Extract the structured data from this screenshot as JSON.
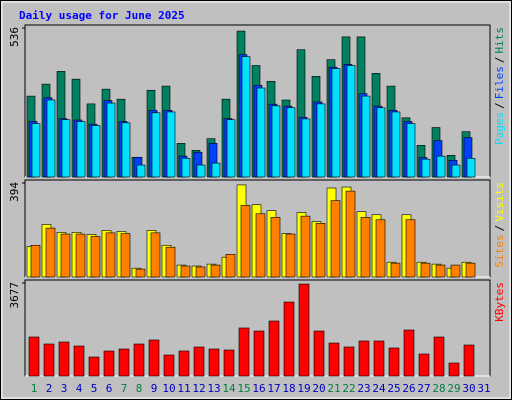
{
  "title": "Daily usage for June 2025",
  "separator": "/",
  "chart_data": [
    {
      "type": "bar",
      "ylim": [
        0,
        536
      ],
      "yticks": [
        536
      ],
      "series": [
        {
          "name": "Hits",
          "color": "#008060",
          "values": [
            291,
            334,
            380,
            352,
            263,
            316,
            280,
            71,
            312,
            327,
            121,
            96,
            138,
            280,
            525,
            401,
            344,
            277,
            458,
            362,
            422,
            504,
            504,
            373,
            327,
            213,
            114,
            178,
            78,
            163,
            0
          ]
        },
        {
          "name": "Files",
          "color": "#0040ff",
          "values": [
            200,
            285,
            210,
            205,
            190,
            275,
            200,
            71,
            240,
            240,
            75,
            89,
            121,
            210,
            440,
            330,
            262,
            255,
            215,
            270,
            395,
            405,
            300,
            255,
            240,
            200,
            70,
            131,
            60,
            142,
            0
          ]
        },
        {
          "name": "Pages",
          "color": "#00e0ff",
          "values": [
            192,
            277,
            206,
            199,
            185,
            266,
            195,
            43,
            231,
            234,
            67,
            43,
            50,
            206,
            433,
            320,
            256,
            249,
            209,
            263,
            390,
            401,
            291,
            249,
            234,
            192,
            64,
            75,
            43,
            67,
            0
          ]
        }
      ]
    },
    {
      "type": "bar",
      "ylim": [
        0,
        394
      ],
      "yticks": [
        394
      ],
      "series": [
        {
          "name": "Visits",
          "color": "#ffff00",
          "values": [
            128,
            220,
            187,
            187,
            178,
            195,
            191,
            37,
            195,
            133,
            50,
            46,
            54,
            83,
            386,
            303,
            278,
            182,
            270,
            232,
            373,
            377,
            274,
            261,
            62,
            261,
            62,
            54,
            37,
            62,
            0
          ]
        },
        {
          "name": "Sites",
          "color": "#ff8000",
          "values": [
            133,
            205,
            180,
            180,
            170,
            185,
            182,
            33,
            185,
            125,
            46,
            42,
            50,
            95,
            300,
            265,
            250,
            180,
            255,
            225,
            320,
            360,
            250,
            240,
            58,
            240,
            58,
            50,
            50,
            58,
            0
          ]
        }
      ]
    },
    {
      "type": "bar",
      "ylim": [
        0,
        3677
      ],
      "yticks": [
        3677
      ],
      "categories": [
        "1",
        "2",
        "3",
        "4",
        "5",
        "6",
        "7",
        "8",
        "9",
        "10",
        "11",
        "12",
        "13",
        "14",
        "15",
        "16",
        "17",
        "18",
        "19",
        "20",
        "21",
        "22",
        "23",
        "24",
        "25",
        "26",
        "27",
        "28",
        "29",
        "30",
        "31"
      ],
      "label_colors": [
        "#008040",
        "#0000c0",
        "#0000c0",
        "#0000c0",
        "#0000c0",
        "#0000c0",
        "#008040",
        "#008040",
        "#0000c0",
        "#0000c0",
        "#0000c0",
        "#0000c0",
        "#0000c0",
        "#008040",
        "#008040",
        "#0000c0",
        "#0000c0",
        "#0000c0",
        "#0000c0",
        "#0000c0",
        "#008040",
        "#008040",
        "#0000c0",
        "#0000c0",
        "#0000c0",
        "#0000c0",
        "#0000c0",
        "#008040",
        "#008040",
        "#0000c0",
        "#0000c0"
      ],
      "series": [
        {
          "name": "KBytes",
          "color": "#ff0000",
          "values": [
            1542,
            1265,
            1344,
            1186,
            751,
            988,
            1067,
            1265,
            1423,
            830,
            988,
            1147,
            1067,
            1028,
            1898,
            1779,
            2174,
            2925,
            3637,
            1779,
            1304,
            1147,
            1384,
            1384,
            1107,
            1819,
            870,
            1542,
            514,
            1225,
            0
          ]
        }
      ]
    }
  ]
}
